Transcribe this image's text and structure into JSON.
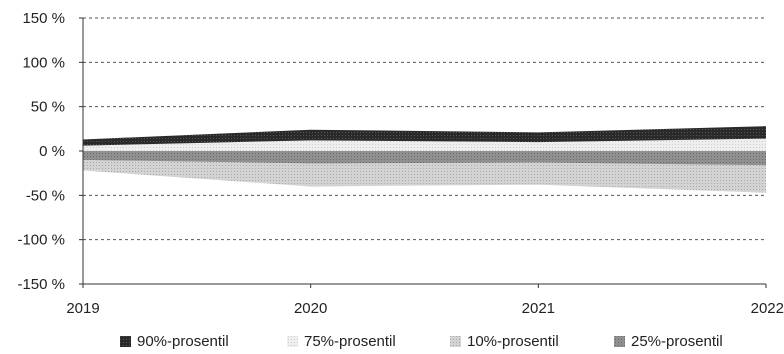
{
  "chart_data": {
    "type": "area",
    "x": [
      "2019",
      "2020",
      "2021",
      "2022"
    ],
    "ylim": [
      -150,
      150
    ],
    "y_ticks": [
      "150 %",
      "100 %",
      "50 %",
      "0 %",
      "-50 %",
      "-100 %",
      "-150 %"
    ],
    "grid": true,
    "legend_position": "bottom",
    "series": [
      {
        "name": "90%-prosentil",
        "values": [
          13,
          24,
          21,
          28
        ],
        "color": "#1a1a1a"
      },
      {
        "name": "75%-prosentil",
        "values": [
          6,
          12,
          10,
          14
        ],
        "color": "#ececec"
      },
      {
        "name": "10%-prosentil",
        "values": [
          -22,
          -40,
          -38,
          -47
        ],
        "color": "#cdcdcd"
      },
      {
        "name": "25%-prosentil",
        "values": [
          -10,
          -14,
          -13,
          -16
        ],
        "color": "#8a8a8a"
      }
    ]
  }
}
